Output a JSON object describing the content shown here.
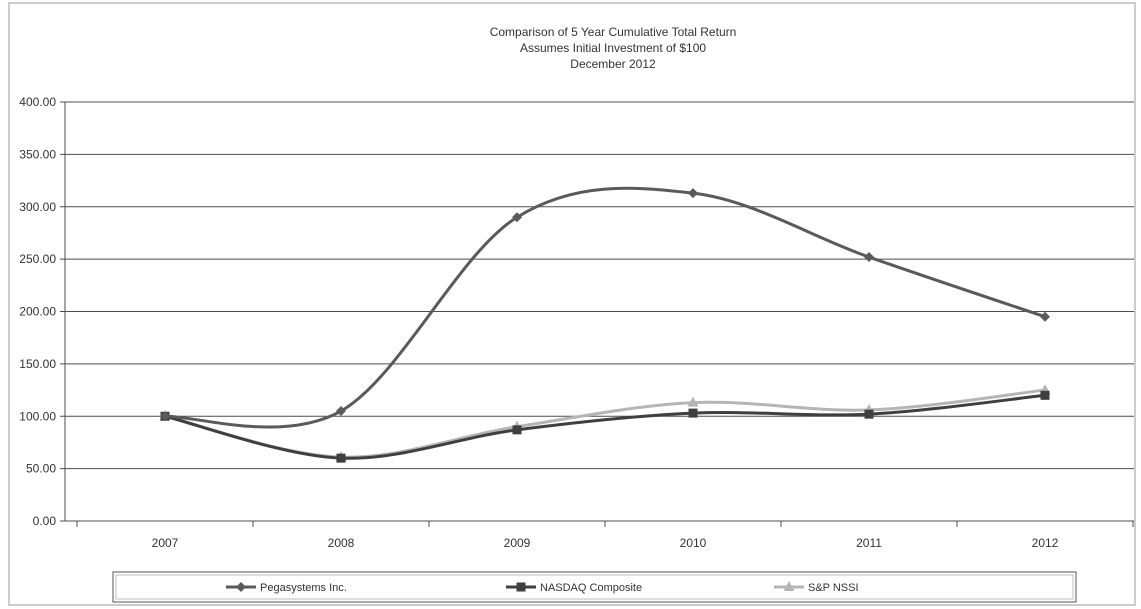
{
  "chart_data": {
    "type": "line",
    "title_lines": [
      "Comparison of 5 Year Cumulative Total Return",
      "Assumes Initial Investment of $100",
      "December 2012"
    ],
    "categories": [
      "2007",
      "2008",
      "2009",
      "2010",
      "2011",
      "2012"
    ],
    "y_tick_labels": [
      "0.00",
      "50.00",
      "100.00",
      "150.00",
      "200.00",
      "250.00",
      "300.00",
      "350.00",
      "400.00"
    ],
    "ylim": [
      0,
      400
    ],
    "grid": true,
    "legend_position": "bottom",
    "series": [
      {
        "name": "Pegasystems Inc.",
        "values": [
          100,
          105,
          290,
          313,
          252,
          195
        ],
        "color": "#5a5a5a",
        "marker": "diamond"
      },
      {
        "name": "NASDAQ Composite",
        "values": [
          100,
          60,
          87,
          103,
          102,
          120
        ],
        "color": "#3f3f3f",
        "marker": "square"
      },
      {
        "name": "S&P NSSI",
        "values": [
          100,
          61,
          90,
          113,
          106,
          125
        ],
        "color": "#b5b5b5",
        "marker": "triangle"
      }
    ]
  }
}
